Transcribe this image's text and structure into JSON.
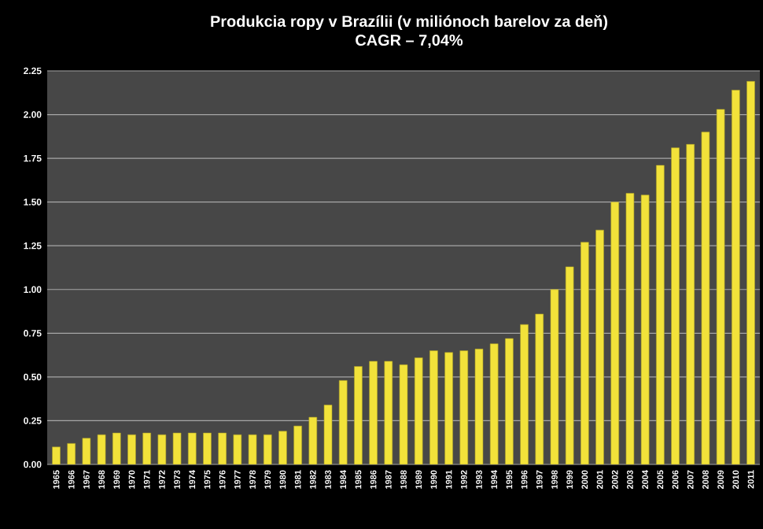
{
  "chart_data": {
    "type": "bar",
    "title": "Produkcia ropy v Brazílii (v miliónoch barelov za deň)",
    "subtitle": "CAGR – 7,04%",
    "categories": [
      "1965",
      "1966",
      "1967",
      "1968",
      "1969",
      "1970",
      "1971",
      "1972",
      "1973",
      "1974",
      "1975",
      "1976",
      "1977",
      "1978",
      "1979",
      "1980",
      "1981",
      "1982",
      "1983",
      "1984",
      "1985",
      "1986",
      "1987",
      "1988",
      "1989",
      "1990",
      "1991",
      "1992",
      "1993",
      "1994",
      "1995",
      "1996",
      "1997",
      "1998",
      "1999",
      "2000",
      "2001",
      "2002",
      "2003",
      "2004",
      "2005",
      "2006",
      "2007",
      "2008",
      "2009",
      "2010",
      "2011"
    ],
    "values": [
      0.1,
      0.12,
      0.15,
      0.17,
      0.18,
      0.17,
      0.18,
      0.17,
      0.18,
      0.18,
      0.18,
      0.18,
      0.17,
      0.17,
      0.17,
      0.19,
      0.22,
      0.27,
      0.34,
      0.48,
      0.56,
      0.59,
      0.59,
      0.57,
      0.61,
      0.65,
      0.64,
      0.65,
      0.66,
      0.69,
      0.72,
      0.8,
      0.86,
      1.0,
      1.13,
      1.27,
      1.34,
      1.5,
      1.55,
      1.54,
      1.71,
      1.81,
      1.83,
      1.9,
      2.03,
      2.14,
      2.19
    ],
    "color": "#f2e23a",
    "ylim": [
      0,
      2.25
    ],
    "yticks": [
      {
        "value": 0,
        "label": "0.00"
      },
      {
        "value": 0.25,
        "label": "0.25"
      },
      {
        "value": 0.5,
        "label": "0.50"
      },
      {
        "value": 0.75,
        "label": "0.75"
      },
      {
        "value": 1,
        "label": "1.00"
      },
      {
        "value": 1.25,
        "label": "1.25"
      },
      {
        "value": 1.5,
        "label": "1.50"
      },
      {
        "value": 1.75,
        "label": "1.75"
      },
      {
        "value": 2,
        "label": "2.00"
      },
      {
        "value": 2.25,
        "label": "2.25"
      }
    ],
    "grid": "y"
  }
}
